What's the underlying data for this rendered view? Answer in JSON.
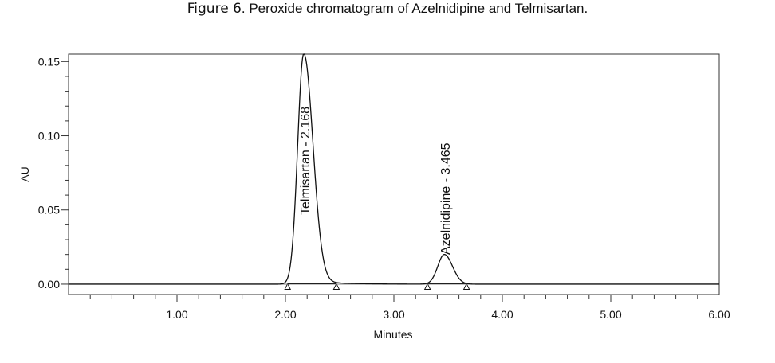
{
  "caption": {
    "label": "Figure 6",
    "text": ". Peroxide chromatogram of Azelnidipine and Telmisartan."
  },
  "chart_data": {
    "type": "line",
    "title": "",
    "xlabel": "Minutes",
    "ylabel": "AU",
    "xlim": [
      0.0,
      6.0
    ],
    "ylim": [
      -0.007,
      0.155
    ],
    "x_ticks": [
      1.0,
      2.0,
      3.0,
      4.0,
      5.0,
      6.0
    ],
    "x_tick_labels": [
      "1.00",
      "2.00",
      "3.00",
      "4.00",
      "5.00",
      "6.00"
    ],
    "y_ticks": [
      0.0,
      0.05,
      0.1,
      0.15
    ],
    "y_tick_labels": [
      "0.00",
      "0.05",
      "0.10",
      "0.15"
    ],
    "grid": false,
    "series": [
      {
        "peaks": [
          {
            "rt": 2.168,
            "height": 0.155
          },
          {
            "rt": 3.465,
            "height": 0.02
          }
        ]
      }
    ],
    "annotations": [
      {
        "text": "Telmisartan - 2.168",
        "x": 2.168
      },
      {
        "text": "Azelnidipine - 3.465",
        "x": 3.465
      }
    ],
    "integration_markers": [
      2.02,
      2.47,
      3.31,
      3.67
    ]
  }
}
